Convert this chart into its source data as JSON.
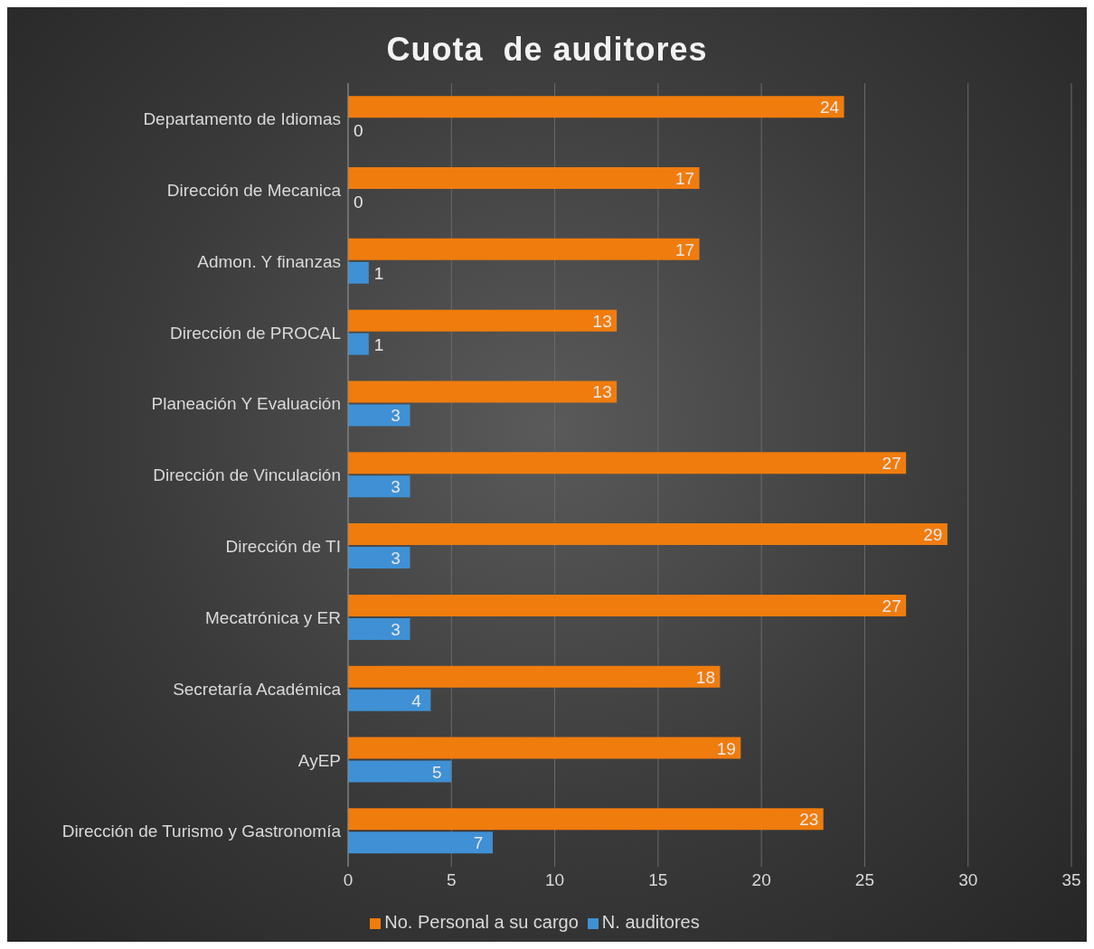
{
  "chart_data": {
    "type": "bar",
    "orientation": "horizontal",
    "title": "Cuota  de auditores",
    "categories": [
      "Departamento de Idiomas",
      "Dirección de Mecanica",
      "Admon. Y finanzas",
      "Dirección de PROCAL",
      "Planeación Y Evaluación",
      "Dirección de Vinculación",
      "Dirección de TI",
      "Mecatrónica y ER",
      "Secretaría Académica ",
      "AyEP",
      "Dirección de Turismo y Gastronomía"
    ],
    "series": [
      {
        "name": "No. Personal a su cargo",
        "color": "#f07c0e",
        "values": [
          24,
          17,
          17,
          13,
          13,
          27,
          29,
          27,
          18,
          19,
          23
        ]
      },
      {
        "name": "N. auditores",
        "color": "#3f90d4",
        "values": [
          0,
          0,
          1,
          1,
          3,
          3,
          3,
          3,
          4,
          5,
          7
        ]
      }
    ],
    "xlim": [
      0,
      35
    ],
    "xticks": [
      0,
      5,
      10,
      15,
      20,
      25,
      30,
      35
    ],
    "grid": "x",
    "legend": "bottom",
    "data_labels": true
  }
}
